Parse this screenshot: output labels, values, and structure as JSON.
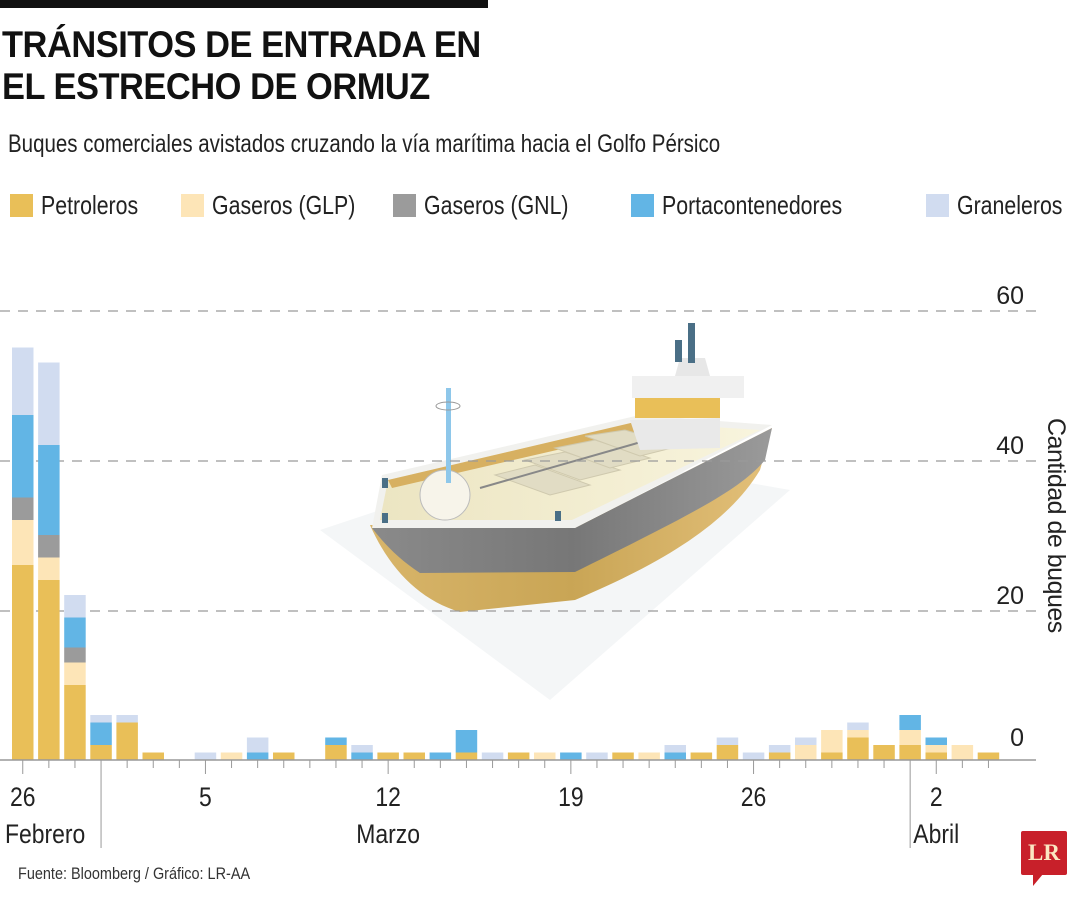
{
  "header": {
    "title_line1": "TRÁNSITOS DE ENTRADA EN",
    "title_line2": "EL ESTRECHO DE ORMUZ",
    "subtitle": "Buques comerciales avistados cruzando la vía marítima hacia el Golfo Pérsico"
  },
  "legend": [
    {
      "label": "Petroleros",
      "color": "#e9bf58"
    },
    {
      "label": "Gaseros (GLP)",
      "color": "#fde5b7"
    },
    {
      "label": "Gaseros (GNL)",
      "color": "#9b9b9b"
    },
    {
      "label": "Portacontenedores",
      "color": "#62b5e5"
    },
    {
      "label": "Graneleros",
      "color": "#d1dcf0"
    }
  ],
  "footer": {
    "source": "Fuente: Bloomberg / Gráfico: LR-AA",
    "logo": "LR",
    "logo_color": "#c8202a"
  },
  "illustration": "oil-tanker-ship",
  "chart_data": {
    "type": "bar",
    "stacked": true,
    "title": "TRÁNSITOS DE ENTRADA EN EL ESTRECHO DE ORMUZ",
    "subtitle": "Buques comerciales avistados cruzando la vía marítima hacia el Golfo Pérsico",
    "xlabel": "",
    "ylabel": "Cantidad de buques",
    "ylim": [
      0,
      60
    ],
    "yticks": [
      0,
      20,
      40,
      60
    ],
    "grid": true,
    "y_axis_side": "right",
    "legend_position": "top",
    "categories": [
      "26 Feb",
      "27 Feb",
      "28 Feb",
      "1 Mar",
      "2 Mar",
      "3 Mar",
      "4 Mar",
      "5 Mar",
      "6 Mar",
      "7 Mar",
      "8 Mar",
      "9 Mar",
      "10 Mar",
      "11 Mar",
      "12 Mar",
      "13 Mar",
      "14 Mar",
      "15 Mar",
      "16 Mar",
      "17 Mar",
      "18 Mar",
      "19 Mar",
      "20 Mar",
      "21 Mar",
      "22 Mar",
      "23 Mar",
      "24 Mar",
      "25 Mar",
      "26 Mar",
      "27 Mar",
      "28 Mar",
      "29 Mar",
      "30 Mar",
      "31 Mar",
      "1 Abr",
      "2 Abr",
      "3 Abr",
      "4 Abr"
    ],
    "x_tick_labels": [
      {
        "index": 0,
        "day": "26",
        "month": "Febrero"
      },
      {
        "index": 7,
        "day": "5",
        "month": ""
      },
      {
        "index": 14,
        "day": "12",
        "month": "Marzo"
      },
      {
        "index": 21,
        "day": "19",
        "month": ""
      },
      {
        "index": 28,
        "day": "26",
        "month": ""
      },
      {
        "index": 35,
        "day": "2",
        "month": "Abril"
      }
    ],
    "month_dividers_before_index": [
      3,
      34
    ],
    "series": [
      {
        "name": "Petroleros",
        "color": "#e9bf58",
        "values": [
          26,
          24,
          10,
          2,
          5,
          1,
          0,
          0,
          0,
          0,
          1,
          0,
          2,
          0,
          1,
          1,
          0,
          1,
          0,
          1,
          0,
          0,
          0,
          1,
          0,
          0,
          1,
          2,
          0,
          1,
          0,
          1,
          3,
          2,
          2,
          1,
          0,
          1
        ]
      },
      {
        "name": "Gaseros (GLP)",
        "color": "#fde5b7",
        "values": [
          6,
          3,
          3,
          0,
          0,
          0,
          0,
          0,
          1,
          0,
          0,
          0,
          0,
          0,
          0,
          0,
          0,
          0,
          0,
          0,
          1,
          0,
          0,
          0,
          1,
          0,
          0,
          0,
          0,
          0,
          2,
          3,
          1,
          0,
          2,
          1,
          2,
          0
        ]
      },
      {
        "name": "Gaseros (GNL)",
        "color": "#9b9b9b",
        "values": [
          3,
          3,
          2,
          0,
          0,
          0,
          0,
          0,
          0,
          0,
          0,
          0,
          0,
          0,
          0,
          0,
          0,
          0,
          0,
          0,
          0,
          0,
          0,
          0,
          0,
          0,
          0,
          0,
          0,
          0,
          0,
          0,
          0,
          0,
          0,
          0,
          0,
          0
        ]
      },
      {
        "name": "Portacontenedores",
        "color": "#62b5e5",
        "values": [
          11,
          12,
          4,
          3,
          0,
          0,
          0,
          0,
          0,
          1,
          0,
          0,
          1,
          1,
          0,
          0,
          1,
          3,
          0,
          0,
          0,
          1,
          0,
          0,
          0,
          1,
          0,
          0,
          0,
          0,
          0,
          0,
          0,
          0,
          2,
          1,
          0,
          0
        ]
      },
      {
        "name": "Graneleros",
        "color": "#d1dcf0",
        "values": [
          9,
          11,
          3,
          1,
          1,
          0,
          0,
          1,
          0,
          2,
          0,
          0,
          0,
          1,
          0,
          0,
          0,
          0,
          1,
          0,
          0,
          0,
          1,
          0,
          0,
          1,
          0,
          1,
          1,
          1,
          1,
          0,
          1,
          0,
          0,
          0,
          0,
          0
        ]
      }
    ]
  }
}
